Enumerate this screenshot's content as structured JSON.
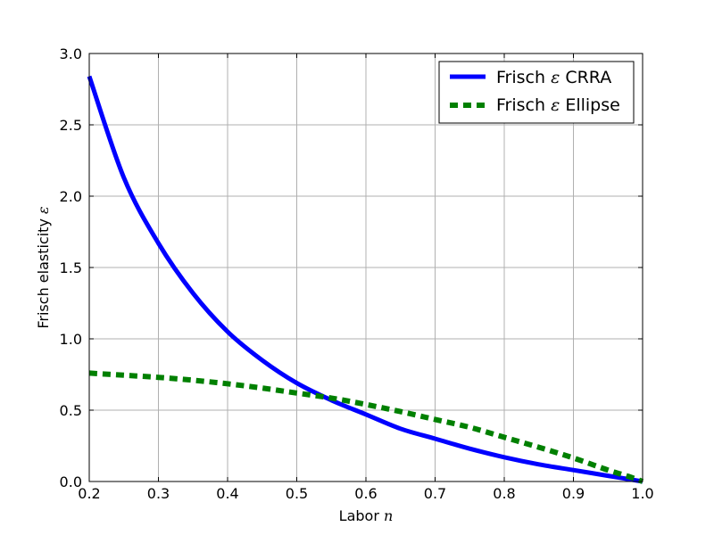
{
  "chart_data": {
    "type": "line",
    "title": "",
    "xlabel": "Labor",
    "xlabel_symbol": "n",
    "ylabel": "Frisch elasticity",
    "ylabel_symbol": "ε",
    "xlim": [
      0.2,
      1.0
    ],
    "ylim": [
      0.0,
      3.0
    ],
    "xticks": [
      "0.2",
      "0.3",
      "0.4",
      "0.5",
      "0.6",
      "0.7",
      "0.8",
      "0.9",
      "1.0"
    ],
    "yticks": [
      "0.0",
      "0.5",
      "1.0",
      "1.5",
      "2.0",
      "2.5",
      "3.0"
    ],
    "grid": true,
    "legend_position": "top-right",
    "series": [
      {
        "name_text": "Frisch",
        "name_symbol": "ε",
        "name_suffix": "CRRA",
        "color": "#0000ff",
        "style": "solid",
        "x": [
          0.2,
          0.25,
          0.3,
          0.35,
          0.4,
          0.45,
          0.5,
          0.55,
          0.6,
          0.65,
          0.7,
          0.75,
          0.8,
          0.85,
          0.9,
          0.95,
          1.0
        ],
        "y": [
          2.84,
          2.13,
          1.67,
          1.32,
          1.05,
          0.85,
          0.69,
          0.57,
          0.47,
          0.37,
          0.3,
          0.23,
          0.17,
          0.12,
          0.08,
          0.04,
          0.0
        ]
      },
      {
        "name_text": "Frisch",
        "name_symbol": "ε",
        "name_suffix": "Ellipse",
        "color": "#008000",
        "style": "dashed",
        "x": [
          0.2,
          0.25,
          0.3,
          0.35,
          0.4,
          0.45,
          0.5,
          0.55,
          0.6,
          0.65,
          0.7,
          0.75,
          0.8,
          0.85,
          0.9,
          0.95,
          0.98,
          1.0
        ],
        "y": [
          0.76,
          0.745,
          0.73,
          0.71,
          0.685,
          0.655,
          0.62,
          0.585,
          0.54,
          0.49,
          0.435,
          0.38,
          0.31,
          0.24,
          0.165,
          0.08,
          0.035,
          0.0
        ]
      }
    ]
  }
}
